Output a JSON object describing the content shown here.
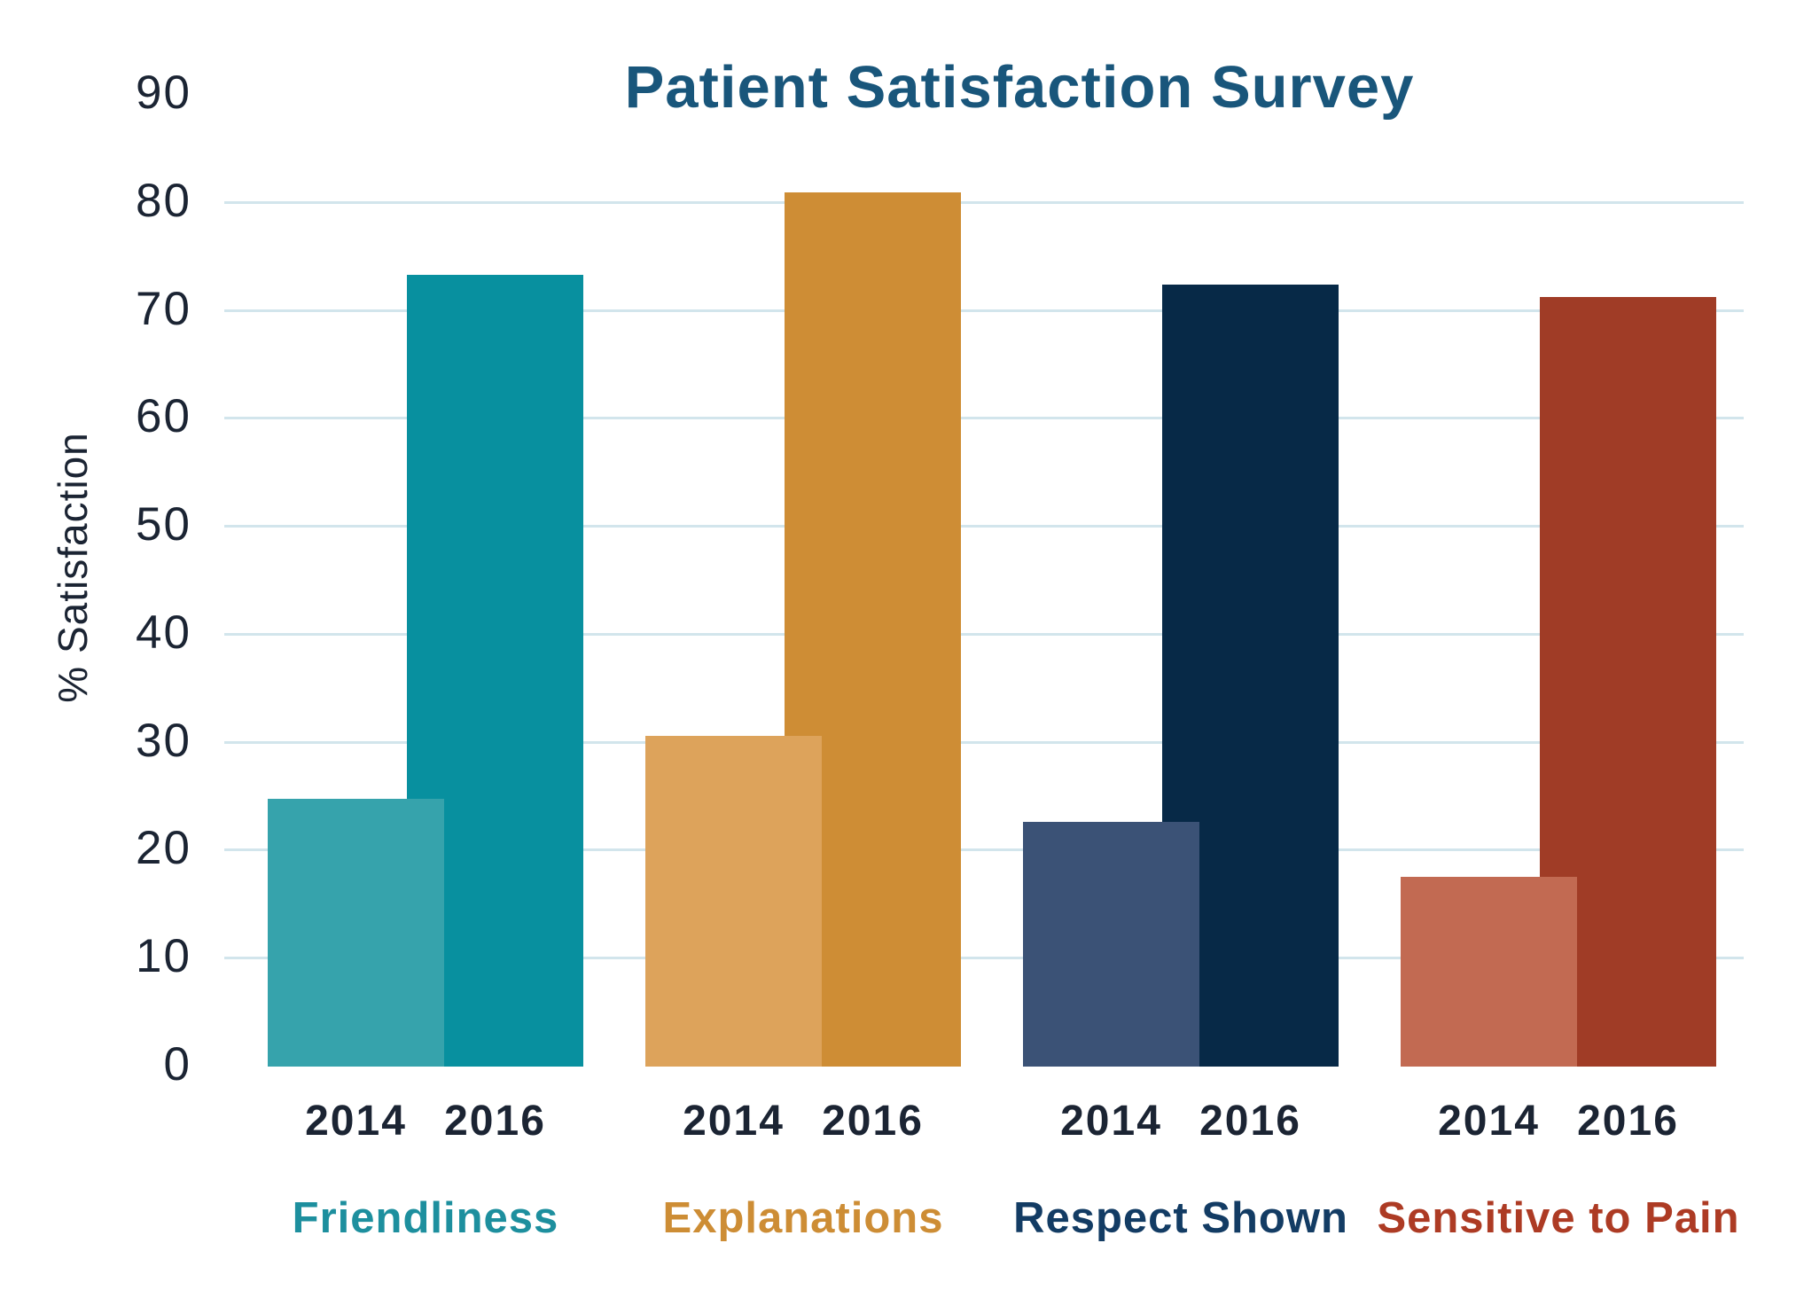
{
  "title": "Patient Satisfaction Survey",
  "colors": {
    "background": "#ffffff",
    "title_text": "#19567b",
    "axis_text": "#1b2433",
    "gridline": "#d2e5ec"
  },
  "chart_data": {
    "type": "bar",
    "title": "Patient Satisfaction Survey",
    "xlabel": "",
    "ylabel": "% Satisfaction",
    "ylim": [
      0,
      90
    ],
    "yticks": [
      90,
      80,
      70,
      60,
      50,
      40,
      30,
      20,
      10,
      0
    ],
    "gridline_values": [
      10,
      20,
      30,
      40,
      50,
      60,
      70,
      80
    ],
    "grid": "horizontal",
    "legend_position": "none",
    "categories": [
      "Friendliness",
      "Explanations",
      "Respect Shown",
      "Sensitive to Pain"
    ],
    "series": [
      {
        "name": "2014",
        "values": [
          24.8,
          30.6,
          22.7,
          17.6
        ]
      },
      {
        "name": "2016",
        "values": [
          73.3,
          81.0,
          72.4,
          71.3
        ]
      }
    ],
    "series_colors": {
      "2014": [
        "#36a3ac",
        "#dda35b",
        "#3b5276",
        "#c26a52"
      ],
      "2016": [
        "#08909f",
        "#ce8d35",
        "#072947",
        "#a03c26"
      ]
    },
    "category_label_colors": [
      "#1d8f9e",
      "#cd8d35",
      "#133c64",
      "#ad3b24"
    ],
    "layout_note": "2014 bar drawn in front, slightly overlapping 2016 bar in each group"
  }
}
